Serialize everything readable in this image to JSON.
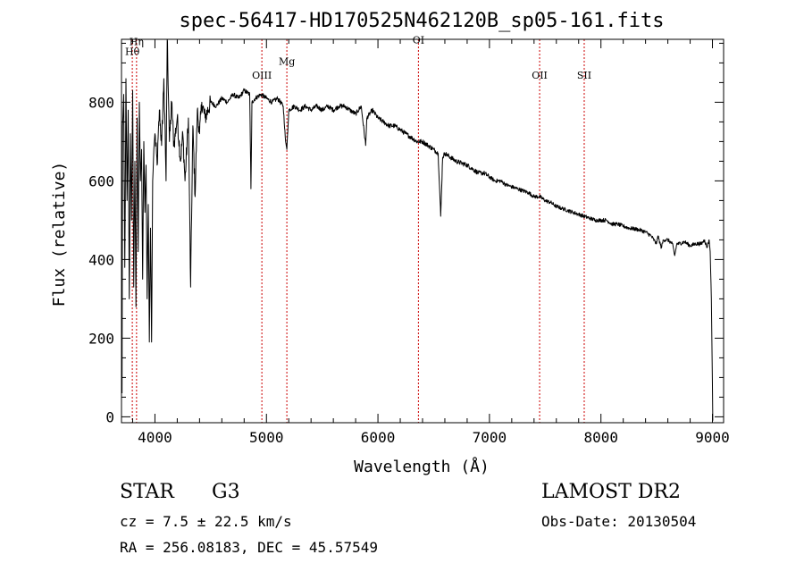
{
  "chart_data": {
    "type": "line",
    "title": "spec-56417-HD170525N462120B_sp05-161.fits",
    "xlabel": "Wavelength (Å)",
    "ylabel": "Flux (relative)",
    "xlim": [
      3700,
      9100
    ],
    "ylim": [
      -15,
      960
    ],
    "xticks": [
      4000,
      5000,
      6000,
      7000,
      8000,
      9000
    ],
    "yticks": [
      0,
      200,
      400,
      600,
      800
    ],
    "grid": false,
    "line_color": "#000000",
    "marker_color": "#cc0000",
    "spectrum_anchors": [
      [
        3705,
        60
      ],
      [
        3710,
        740
      ],
      [
        3720,
        820
      ],
      [
        3730,
        380
      ],
      [
        3740,
        860
      ],
      [
        3750,
        550
      ],
      [
        3760,
        780
      ],
      [
        3770,
        300
      ],
      [
        3780,
        720
      ],
      [
        3790,
        500
      ],
      [
        3800,
        830
      ],
      [
        3810,
        330
      ],
      [
        3820,
        650
      ],
      [
        3830,
        280
      ],
      [
        3840,
        760
      ],
      [
        3850,
        420
      ],
      [
        3860,
        800
      ],
      [
        3870,
        600
      ],
      [
        3880,
        680
      ],
      [
        3890,
        350
      ],
      [
        3900,
        700
      ],
      [
        3910,
        520
      ],
      [
        3920,
        640
      ],
      [
        3930,
        300
      ],
      [
        3940,
        540
      ],
      [
        3950,
        190
      ],
      [
        3960,
        480
      ],
      [
        3970,
        190
      ],
      [
        3980,
        600
      ],
      [
        3990,
        680
      ],
      [
        4000,
        720
      ],
      [
        4020,
        640
      ],
      [
        4040,
        780
      ],
      [
        4060,
        690
      ],
      [
        4080,
        860
      ],
      [
        4100,
        600
      ],
      [
        4110,
        980
      ],
      [
        4130,
        700
      ],
      [
        4150,
        800
      ],
      [
        4170,
        690
      ],
      [
        4200,
        760
      ],
      [
        4230,
        650
      ],
      [
        4250,
        720
      ],
      [
        4270,
        600
      ],
      [
        4300,
        760
      ],
      [
        4320,
        330
      ],
      [
        4340,
        740
      ],
      [
        4360,
        560
      ],
      [
        4380,
        780
      ],
      [
        4400,
        720
      ],
      [
        4420,
        800
      ],
      [
        4450,
        760
      ],
      [
        4500,
        800
      ],
      [
        4550,
        790
      ],
      [
        4600,
        810
      ],
      [
        4650,
        800
      ],
      [
        4700,
        820
      ],
      [
        4750,
        810
      ],
      [
        4800,
        830
      ],
      [
        4850,
        820
      ],
      [
        4861,
        580
      ],
      [
        4870,
        800
      ],
      [
        4900,
        810
      ],
      [
        4950,
        820
      ],
      [
        5000,
        810
      ],
      [
        5050,
        800
      ],
      [
        5100,
        810
      ],
      [
        5150,
        790
      ],
      [
        5172,
        700
      ],
      [
        5183,
        680
      ],
      [
        5200,
        780
      ],
      [
        5250,
        790
      ],
      [
        5300,
        780
      ],
      [
        5350,
        790
      ],
      [
        5400,
        780
      ],
      [
        5450,
        790
      ],
      [
        5500,
        780
      ],
      [
        5550,
        790
      ],
      [
        5600,
        780
      ],
      [
        5650,
        790
      ],
      [
        5700,
        790
      ],
      [
        5750,
        780
      ],
      [
        5800,
        770
      ],
      [
        5850,
        790
      ],
      [
        5890,
        690
      ],
      [
        5900,
        760
      ],
      [
        5950,
        780
      ],
      [
        6000,
        760
      ],
      [
        6050,
        750
      ],
      [
        6100,
        740
      ],
      [
        6150,
        740
      ],
      [
        6200,
        730
      ],
      [
        6250,
        720
      ],
      [
        6300,
        710
      ],
      [
        6350,
        700
      ],
      [
        6400,
        700
      ],
      [
        6450,
        690
      ],
      [
        6500,
        680
      ],
      [
        6540,
        670
      ],
      [
        6563,
        510
      ],
      [
        6580,
        660
      ],
      [
        6600,
        670
      ],
      [
        6650,
        660
      ],
      [
        6700,
        650
      ],
      [
        6750,
        645
      ],
      [
        6800,
        640
      ],
      [
        6850,
        630
      ],
      [
        6900,
        620
      ],
      [
        6950,
        620
      ],
      [
        7000,
        610
      ],
      [
        7050,
        600
      ],
      [
        7100,
        600
      ],
      [
        7150,
        590
      ],
      [
        7200,
        585
      ],
      [
        7250,
        580
      ],
      [
        7300,
        575
      ],
      [
        7350,
        570
      ],
      [
        7400,
        560
      ],
      [
        7450,
        560
      ],
      [
        7500,
        550
      ],
      [
        7550,
        545
      ],
      [
        7600,
        535
      ],
      [
        7650,
        530
      ],
      [
        7700,
        525
      ],
      [
        7750,
        520
      ],
      [
        7800,
        515
      ],
      [
        7850,
        510
      ],
      [
        7900,
        505
      ],
      [
        7950,
        500
      ],
      [
        8000,
        500
      ],
      [
        8050,
        500
      ],
      [
        8100,
        490
      ],
      [
        8150,
        490
      ],
      [
        8200,
        485
      ],
      [
        8250,
        480
      ],
      [
        8300,
        478
      ],
      [
        8350,
        475
      ],
      [
        8400,
        470
      ],
      [
        8450,
        460
      ],
      [
        8498,
        440
      ],
      [
        8510,
        460
      ],
      [
        8542,
        430
      ],
      [
        8560,
        450
      ],
      [
        8600,
        450
      ],
      [
        8640,
        440
      ],
      [
        8662,
        410
      ],
      [
        8680,
        440
      ],
      [
        8700,
        440
      ],
      [
        8750,
        445
      ],
      [
        8800,
        435
      ],
      [
        8850,
        440
      ],
      [
        8900,
        440
      ],
      [
        8930,
        450
      ],
      [
        8950,
        430
      ],
      [
        8970,
        450
      ],
      [
        8980,
        420
      ],
      [
        8990,
        300
      ],
      [
        9000,
        80
      ],
      [
        9003,
        -10
      ]
    ],
    "annotations": [
      {
        "label": "Hη",
        "x": 3835,
        "y_label": 945,
        "label_ha": "middle"
      },
      {
        "label": "Hθ",
        "x": 3797,
        "y_label": 920,
        "label_ha": "middle"
      },
      {
        "label": "OIII",
        "x": 4959,
        "y_label": 860,
        "label_ha": "middle"
      },
      {
        "label": "Mg",
        "x": 5183,
        "y_label": 895,
        "label_ha": "middle"
      },
      {
        "label": "OI",
        "x": 6363,
        "y_label": 950,
        "label_ha": "middle"
      },
      {
        "label": "OII",
        "x": 7450,
        "y_label": 860,
        "label_ha": "middle"
      },
      {
        "label": "SII",
        "x": 7850,
        "y_label": 860,
        "label_ha": "middle"
      }
    ],
    "info": {
      "class": "STAR",
      "subclass": "G3",
      "redshift": "cz = 7.5 ± 22.5 km/s",
      "coords": "RA = 256.08183, DEC =  45.57549",
      "survey": "LAMOST DR2",
      "obs_date": "Obs-Date: 20130504"
    }
  }
}
